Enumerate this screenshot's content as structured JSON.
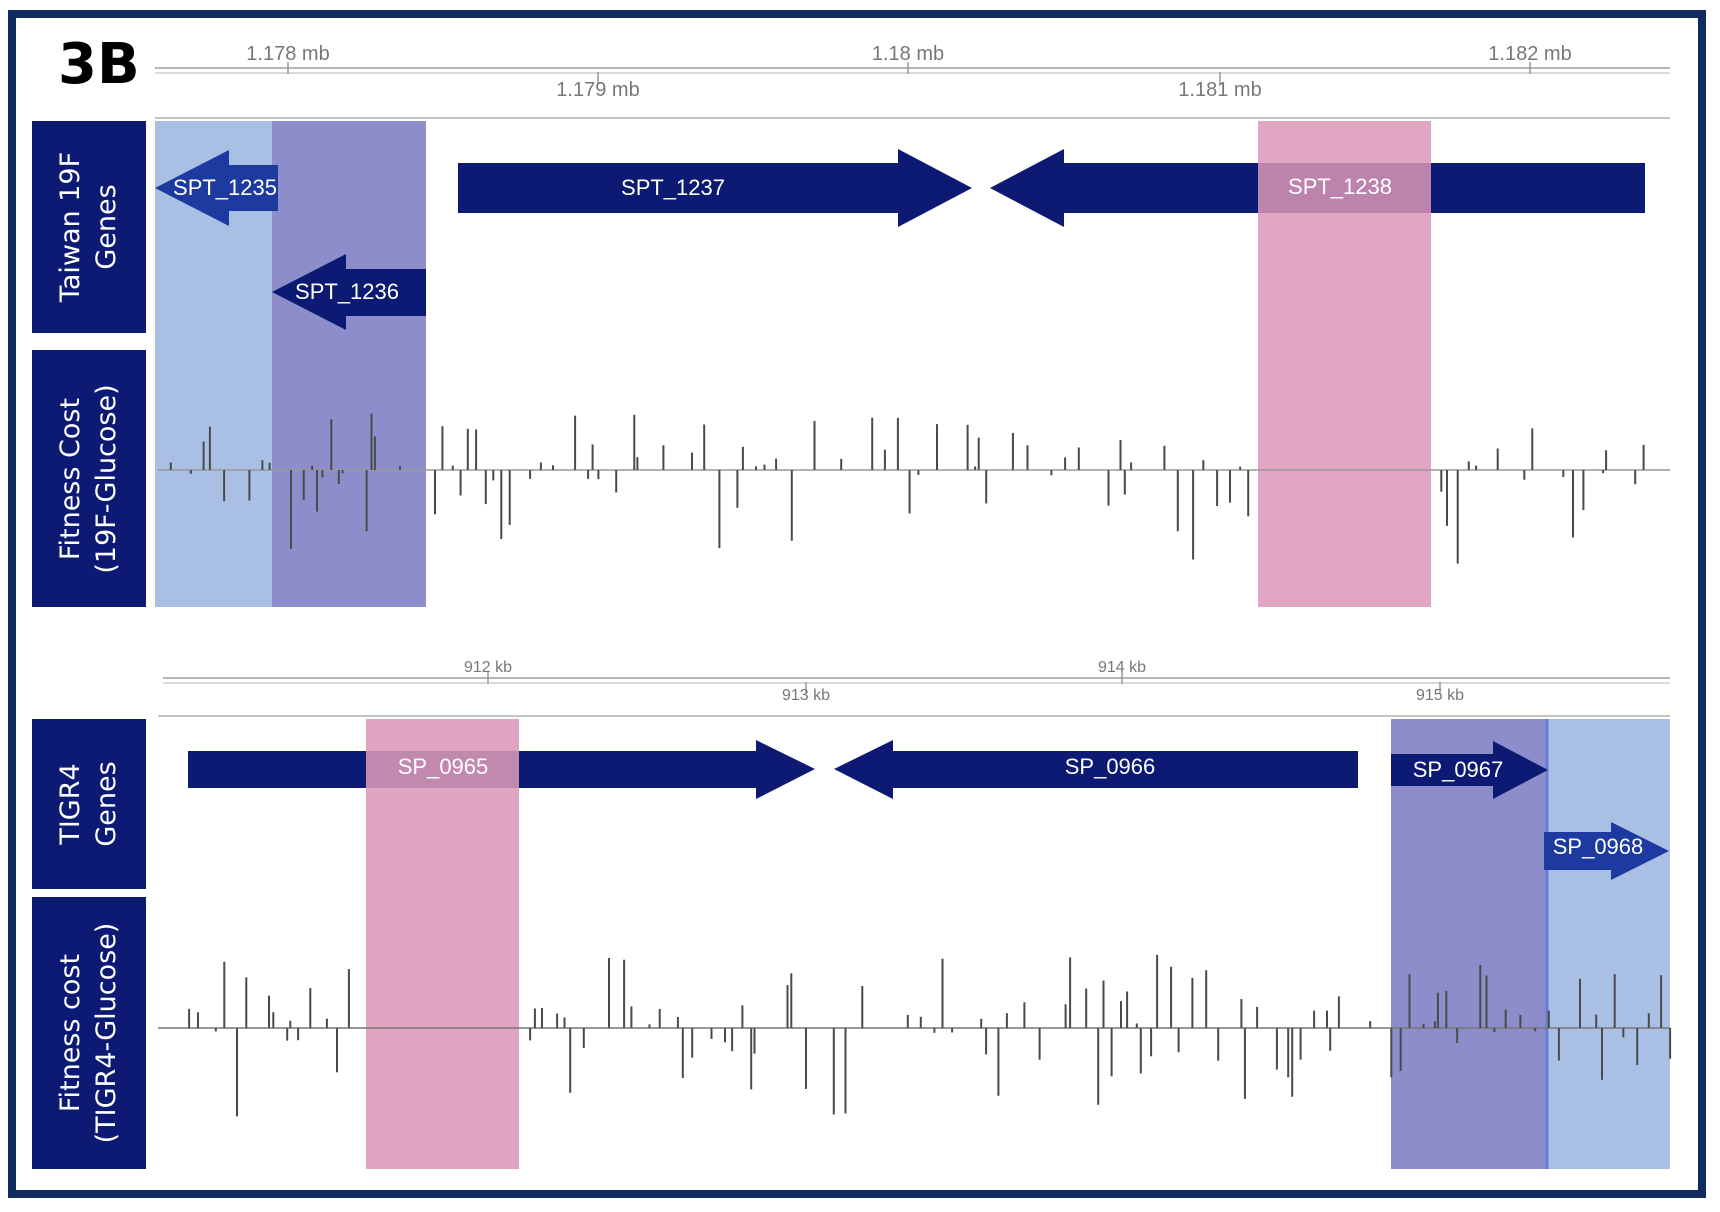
{
  "panel_label": "3B",
  "colors": {
    "frame": "#0e2a5e",
    "label_bg": "#0c1a74",
    "gene_arrow": "#0c1a74",
    "gene_arrow_light": "#1d3aa0",
    "highlight_lightblue": "#a9bfe4",
    "highlight_purple": "#8d8dcc",
    "highlight_pink": "#dc98b7",
    "axis": "#b5b5b5",
    "bar": "#4a4a4a"
  },
  "top": {
    "genes_label": [
      "Taiwan 19F",
      "Genes"
    ],
    "fitness_label": [
      "Fitness Cost",
      "(19F-Glucose)"
    ],
    "axis_upper_ticks": [
      "1.178 mb",
      "1.18 mb",
      "1.182 mb"
    ],
    "axis_lower_ticks": [
      "1.179 mb",
      "1.181 mb"
    ],
    "genes": [
      {
        "name": "SPT_1235",
        "strand": "-"
      },
      {
        "name": "SPT_1236",
        "strand": "-"
      },
      {
        "name": "SPT_1237",
        "strand": "+"
      },
      {
        "name": "SPT_1238",
        "strand": "-"
      }
    ],
    "highlights": [
      "lightblue",
      "purple",
      "pink"
    ]
  },
  "bottom": {
    "genes_label": [
      "TIGR4",
      "Genes"
    ],
    "fitness_label": [
      "Fitness cost",
      "(TIGR4-Glucose)"
    ],
    "axis_upper_ticks": [
      "912 kb",
      "914 kb"
    ],
    "axis_lower_ticks": [
      "913 kb",
      "915 kb"
    ],
    "genes": [
      {
        "name": "SP_0965",
        "strand": "+"
      },
      {
        "name": "SP_0966",
        "strand": "-"
      },
      {
        "name": "SP_0967",
        "strand": "+"
      },
      {
        "name": "SP_0968",
        "strand": "+"
      }
    ],
    "highlights": [
      "pink",
      "purple",
      "lightblue"
    ]
  }
}
